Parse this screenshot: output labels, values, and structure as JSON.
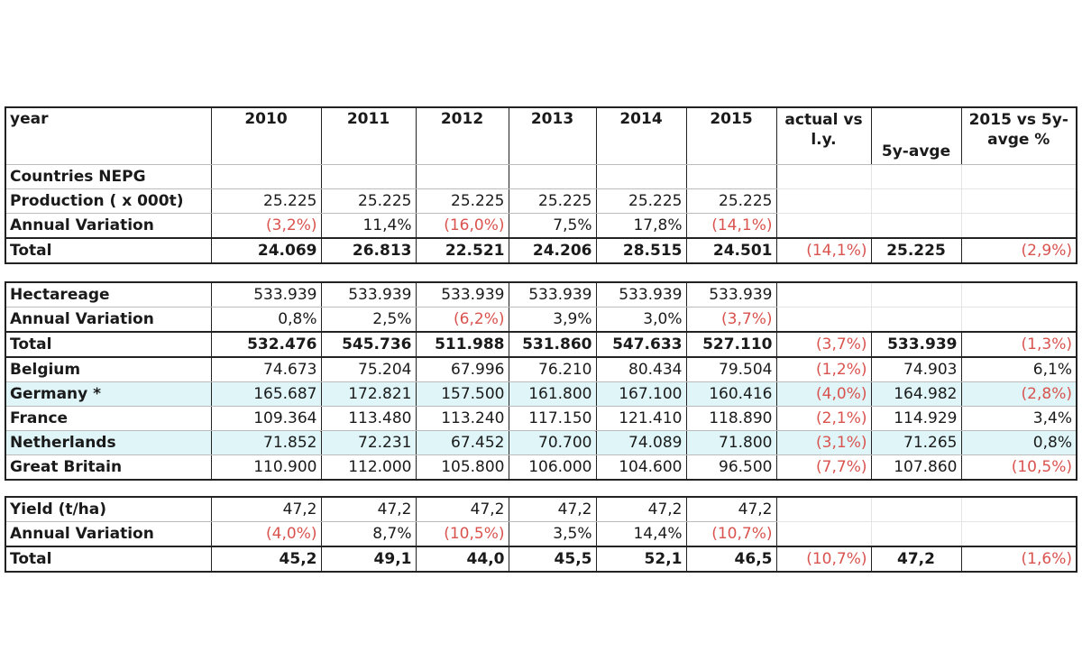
{
  "header": {
    "label": "year",
    "years": [
      "2010",
      "2011",
      "2012",
      "2013",
      "2014",
      "2015"
    ],
    "col_actual_vs_ly": "actual vs l.y.",
    "col_actual_line1": "actual vs",
    "col_actual_line2": "l.y.",
    "col_5y_avg": "5y-avge",
    "col_2015_vs_5y_line1": "2015 vs 5y-",
    "col_2015_vs_5y_line2": "avge %"
  },
  "production": {
    "section_label": "Countries NEPG",
    "rows": [
      {
        "label": "Production ( x 000t)",
        "values": [
          "25.225",
          "25.225",
          "25.225",
          "25.225",
          "25.225",
          "25.225"
        ],
        "actual_vs_ly": "",
        "avg5y": "",
        "vs5y": ""
      },
      {
        "label": "Annual Variation",
        "values": [
          "(3,2%)",
          "11,4%",
          "(16,0%)",
          "7,5%",
          "17,8%",
          "(14,1%)"
        ],
        "actual_vs_ly": "",
        "avg5y": "",
        "vs5y": ""
      },
      {
        "label": "Total",
        "values": [
          "24.069",
          "26.813",
          "22.521",
          "24.206",
          "28.515",
          "24.501"
        ],
        "actual_vs_ly": "(14,1%)",
        "avg5y": "25.225",
        "vs5y": "(2,9%)"
      }
    ]
  },
  "hectareage": {
    "rows": [
      {
        "label": "Hectareage",
        "values": [
          "533.939",
          "533.939",
          "533.939",
          "533.939",
          "533.939",
          "533.939"
        ],
        "actual_vs_ly": "",
        "avg5y": "",
        "vs5y": ""
      },
      {
        "label": "Annual Variation",
        "values": [
          "0,8%",
          "2,5%",
          "(6,2%)",
          "3,9%",
          "3,0%",
          "(3,7%)"
        ],
        "actual_vs_ly": "",
        "avg5y": "",
        "vs5y": ""
      },
      {
        "label": "Total",
        "values": [
          "532.476",
          "545.736",
          "511.988",
          "531.860",
          "547.633",
          "527.110"
        ],
        "actual_vs_ly": "(3,7%)",
        "avg5y": "533.939",
        "vs5y": "(1,3%)"
      },
      {
        "label": "Belgium",
        "values": [
          "74.673",
          "75.204",
          "67.996",
          "76.210",
          "80.434",
          "79.504"
        ],
        "actual_vs_ly": "(1,2%)",
        "avg5y": "74.903",
        "vs5y": "6,1%"
      },
      {
        "label": "Germany *",
        "values": [
          "165.687",
          "172.821",
          "157.500",
          "161.800",
          "167.100",
          "160.416"
        ],
        "actual_vs_ly": "(4,0%)",
        "avg5y": "164.982",
        "vs5y": "(2,8%)"
      },
      {
        "label": "France",
        "values": [
          "109.364",
          "113.480",
          "113.240",
          "117.150",
          "121.410",
          "118.890"
        ],
        "actual_vs_ly": "(2,1%)",
        "avg5y": "114.929",
        "vs5y": "3,4%"
      },
      {
        "label": "Netherlands",
        "values": [
          "71.852",
          "72.231",
          "67.452",
          "70.700",
          "74.089",
          "71.800"
        ],
        "actual_vs_ly": "(3,1%)",
        "avg5y": "71.265",
        "vs5y": "0,8%"
      },
      {
        "label": "Great Britain",
        "values": [
          "110.900",
          "112.000",
          "105.800",
          "106.000",
          "104.600",
          "96.500"
        ],
        "actual_vs_ly": "(7,7%)",
        "avg5y": "107.860",
        "vs5y": "(10,5%)"
      }
    ]
  },
  "yield": {
    "rows": [
      {
        "label": "Yield (t/ha)",
        "values": [
          "47,2",
          "47,2",
          "47,2",
          "47,2",
          "47,2",
          "47,2"
        ],
        "actual_vs_ly": "",
        "avg5y": "",
        "vs5y": ""
      },
      {
        "label": "Annual Variation",
        "values": [
          "(4,0%)",
          "8,7%",
          "(10,5%)",
          "3,5%",
          "14,4%",
          "(10,7%)"
        ],
        "actual_vs_ly": "",
        "avg5y": "",
        "vs5y": ""
      },
      {
        "label": "Total",
        "values": [
          "45,2",
          "49,1",
          "44,0",
          "45,5",
          "52,1",
          "46,5"
        ],
        "actual_vs_ly": "(10,7%)",
        "avg5y": "47,2",
        "vs5y": "(1,6%)"
      }
    ]
  },
  "colors": {
    "negative": "#d9534f",
    "highlight_row": "#dff5f8",
    "border": "#222222",
    "comment_marker": "#b22222"
  }
}
